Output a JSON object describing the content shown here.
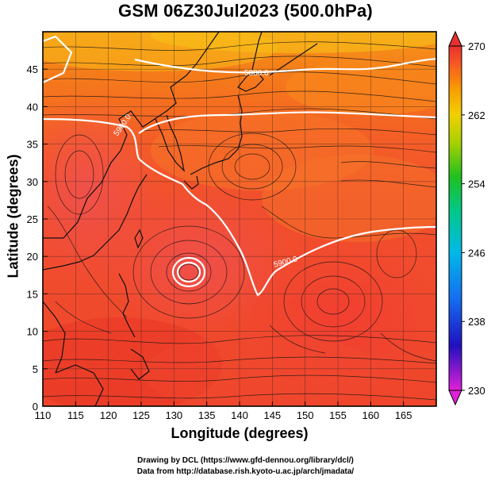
{
  "title": "GSM 06Z30Jul2023 (500.0hPa)",
  "xlabel": "Longitude (degrees)",
  "ylabel": "Latitude  (degrees)",
  "credits": {
    "line1": "Drawing by DCL (https://www.gfd-dennou.org/library/dcl/)",
    "line2": "Data from http://database.rish.kyoto-u.ac.jp/arch/jmadata/"
  },
  "chart_data": {
    "type": "heatmap",
    "title": "GSM 06Z30Jul2023 (500.0hPa)",
    "xlabel": "Longitude (degrees)",
    "ylabel": "Latitude  (degrees)",
    "xlim": [
      110,
      170
    ],
    "ylim": [
      0,
      50
    ],
    "x_ticks": [
      110,
      115,
      120,
      125,
      130,
      135,
      140,
      145,
      150,
      155,
      160,
      165
    ],
    "y_ticks": [
      0,
      5,
      10,
      15,
      20,
      25,
      30,
      35,
      40,
      45
    ],
    "grid": true,
    "colorbar": {
      "range": [
        230,
        270
      ],
      "tick_labels": [
        "270",
        "262",
        "254",
        "246",
        "238",
        "230"
      ],
      "colors": [
        "#d020d0",
        "#1010c0",
        "#1870f0",
        "#00b8e8",
        "#00c890",
        "#18c018",
        "#90d000",
        "#e8d000",
        "#f8a000",
        "#f86020",
        "#f03030",
        "#e82828"
      ]
    },
    "contours": [
      {
        "label": "5880.0",
        "color": "#ffffff"
      },
      {
        "label": "5900.0",
        "color": "#ffffff"
      },
      {
        "label": "5900.0",
        "color": "#ffffff"
      }
    ]
  }
}
